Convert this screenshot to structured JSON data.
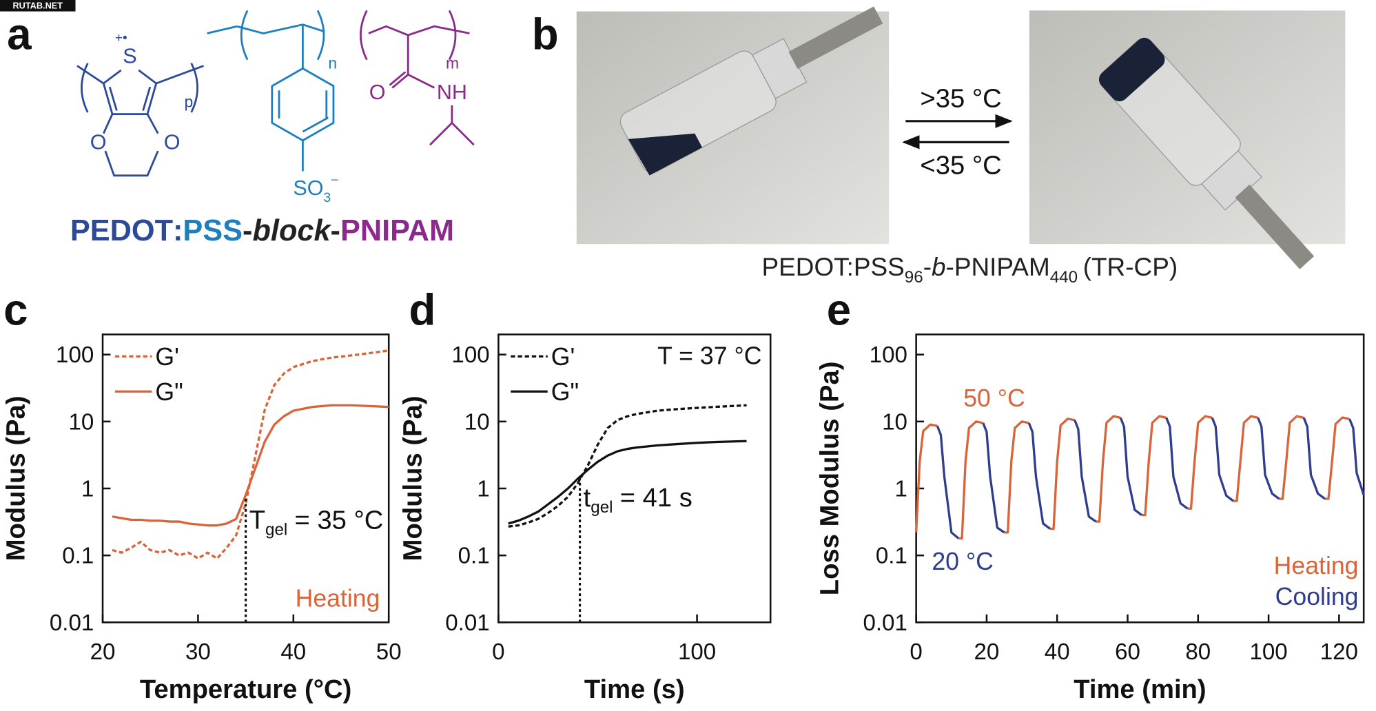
{
  "watermark": "RUTAB.NET",
  "panel_a": {
    "label": "a",
    "atoms": {
      "sulfur": "S",
      "radical": "+•",
      "oxygen_left": "O",
      "oxygen_right": "O",
      "sub_p": "p",
      "sub_n": "n",
      "sub_m": "m",
      "carbonyl_o": "O",
      "amide": "NH",
      "sulfonate": "SO",
      "sulfonate_sub": "3",
      "sulfonate_sup": "−"
    },
    "name": {
      "pedot": "PEDOT",
      "colon": ":",
      "pss": "PSS",
      "dash1": "-",
      "block": "block",
      "dash2": "-",
      "pnipam": "PNIPAM"
    }
  },
  "panel_b": {
    "label": "b",
    "forward": ">35 °C",
    "reverse": "<35 °C",
    "caption": {
      "part1": "PEDOT:PSS",
      "sub1": "96",
      "part2": "-",
      "italic": "b",
      "part3": "-PNIPAM",
      "sub2": "440",
      "part4": "(TR-CP)"
    }
  },
  "chart_data": [
    {
      "type": "line",
      "panel_label": "c",
      "xlabel": "Temperature (°C)",
      "ylabel": "Modulus (Pa)",
      "log_y": true,
      "xlim": [
        20,
        50
      ],
      "ylim": [
        0.01,
        200
      ],
      "xticks": [
        20,
        30,
        40,
        50
      ],
      "yticks": [
        0.01,
        0.1,
        1,
        10,
        100
      ],
      "legend": "upper left",
      "x": [
        21,
        22,
        23,
        24,
        25,
        26,
        27,
        28,
        29,
        30,
        31,
        32,
        33,
        34,
        35,
        36,
        37,
        38,
        39,
        40,
        42,
        44,
        46,
        48,
        50
      ],
      "series": [
        {
          "name": "G'",
          "color": "#d9643a",
          "dashed": true,
          "values": [
            0.12,
            0.11,
            0.13,
            0.16,
            0.12,
            0.11,
            0.12,
            0.1,
            0.11,
            0.09,
            0.11,
            0.09,
            0.13,
            0.2,
            0.6,
            3,
            15,
            35,
            52,
            65,
            80,
            90,
            97,
            105,
            115
          ]
        },
        {
          "name": "G\"",
          "color": "#d9643a",
          "dashed": false,
          "values": [
            0.38,
            0.36,
            0.34,
            0.34,
            0.33,
            0.33,
            0.32,
            0.32,
            0.3,
            0.29,
            0.28,
            0.28,
            0.3,
            0.35,
            0.8,
            2,
            5,
            9,
            12,
            14.5,
            16.5,
            17.5,
            17.5,
            17,
            16.5
          ]
        }
      ],
      "gel_line": {
        "x": 35,
        "y": 0.7,
        "label": "T",
        "label_sub": "gel",
        "label_tail": "= 35 °C"
      },
      "note": {
        "text": "Heating",
        "color": "#d9643a"
      }
    },
    {
      "type": "line",
      "panel_label": "d",
      "xlabel": "Time (s)",
      "ylabel": "Modulus (Pa)",
      "log_y": true,
      "xlim": [
        0,
        137
      ],
      "ylim": [
        0.01,
        200
      ],
      "xticks": [
        0,
        100
      ],
      "yticks": [
        0.01,
        0.1,
        1,
        10,
        100
      ],
      "legend": "upper left",
      "x": [
        5,
        10,
        15,
        20,
        25,
        30,
        35,
        40,
        45,
        50,
        55,
        60,
        65,
        70,
        80,
        90,
        100,
        110,
        120,
        125
      ],
      "series": [
        {
          "name": "G'",
          "color": "#111111",
          "dashed": true,
          "values": [
            0.27,
            0.28,
            0.31,
            0.35,
            0.43,
            0.55,
            0.75,
            1.2,
            2.2,
            4.5,
            8,
            10.5,
            12,
            13,
            14.5,
            15.3,
            16,
            16.6,
            17.2,
            17.5
          ]
        },
        {
          "name": "G\"",
          "color": "#111111",
          "dashed": false,
          "values": [
            0.3,
            0.33,
            0.38,
            0.45,
            0.58,
            0.75,
            1.0,
            1.4,
            1.9,
            2.5,
            3.1,
            3.6,
            3.9,
            4.1,
            4.4,
            4.6,
            4.8,
            4.95,
            5.05,
            5.1
          ]
        }
      ],
      "gel_line": {
        "x": 41,
        "y": 1.5,
        "label": "t",
        "label_sub": "gel",
        "label_tail": "= 41 s"
      },
      "note": {
        "text": "T = 37 °C",
        "color": "#111111"
      }
    },
    {
      "type": "line",
      "panel_label": "e",
      "xlabel": "Time (min)",
      "ylabel": "Loss Modulus (Pa)",
      "log_y": true,
      "xlim": [
        0,
        127
      ],
      "ylim": [
        0.01,
        200
      ],
      "xticks": [
        0,
        20,
        40,
        60,
        80,
        100,
        120
      ],
      "yticks": [
        0.01,
        0.1,
        1,
        10,
        100
      ],
      "legend": "lower right",
      "x": [
        0,
        1,
        2,
        4,
        6,
        7,
        8,
        10,
        12,
        13,
        14,
        15,
        17,
        19,
        20,
        21,
        23,
        25,
        26,
        27,
        28,
        30,
        32,
        33,
        34,
        36,
        38,
        39,
        40,
        41,
        43,
        45,
        46,
        47,
        49,
        51,
        52,
        53,
        54,
        56,
        58,
        59,
        60,
        62,
        64,
        65,
        66,
        67,
        69,
        71,
        72,
        73,
        75,
        77,
        78,
        79,
        80,
        82,
        84,
        85,
        86,
        88,
        90,
        91,
        92,
        93,
        95,
        97,
        98,
        99,
        101,
        103,
        104,
        105,
        106,
        108,
        110,
        111,
        112,
        114,
        116,
        117,
        118,
        119,
        121,
        123,
        124,
        125,
        127
      ],
      "series": [
        {
          "name": "Heating",
          "color": "#d9643a",
          "values": [
            0.22,
            2.5,
            7.2,
            9,
            8.6,
            null,
            null,
            null,
            0.18,
            0.18,
            2.5,
            8,
            10,
            9.5,
            null,
            null,
            null,
            0.22,
            0.22,
            2.5,
            8,
            10,
            9.5,
            null,
            null,
            null,
            0.25,
            0.25,
            2.5,
            8.8,
            11,
            10.5,
            null,
            null,
            null,
            0.32,
            0.32,
            2.5,
            9.6,
            12,
            11.4,
            null,
            null,
            null,
            0.4,
            0.4,
            2.5,
            9.6,
            12,
            11.4,
            null,
            null,
            null,
            0.5,
            0.5,
            2.5,
            9.6,
            12,
            11.4,
            null,
            null,
            null,
            0.65,
            0.65,
            2.5,
            9.6,
            12,
            11.4,
            null,
            null,
            null,
            0.7,
            0.7,
            2.5,
            9.6,
            12,
            11.4,
            null,
            null,
            null,
            0.7,
            0.7,
            2.5,
            9.2,
            11.5,
            10.9,
            null,
            null,
            null
          ]
        },
        {
          "name": "Cooling",
          "color": "#2f3d8f",
          "values": [
            null,
            null,
            null,
            null,
            8.6,
            6.3,
            1.5,
            0.22,
            0.18,
            null,
            null,
            null,
            null,
            9.5,
            7,
            1.5,
            0.26,
            0.22,
            null,
            null,
            null,
            null,
            9.5,
            7,
            1.5,
            0.3,
            0.25,
            null,
            null,
            null,
            null,
            10.5,
            7.7,
            1.5,
            0.38,
            0.32,
            null,
            null,
            null,
            null,
            11.4,
            8.4,
            1.5,
            0.48,
            0.4,
            null,
            null,
            null,
            null,
            11.4,
            8.4,
            1.5,
            0.6,
            0.5,
            null,
            null,
            null,
            null,
            11.4,
            8.4,
            1.6,
            0.78,
            0.65,
            null,
            null,
            null,
            null,
            11.4,
            8.4,
            1.6,
            0.84,
            0.7,
            null,
            null,
            null,
            null,
            11.4,
            8.4,
            1.6,
            0.84,
            0.7,
            null,
            null,
            null,
            null,
            10.9,
            8,
            1.7,
            0.8
          ]
        }
      ],
      "annotations": [
        {
          "text": "50 °C",
          "color": "#d9643a"
        },
        {
          "text": "20 °C",
          "color": "#2f3d8f"
        }
      ]
    }
  ]
}
